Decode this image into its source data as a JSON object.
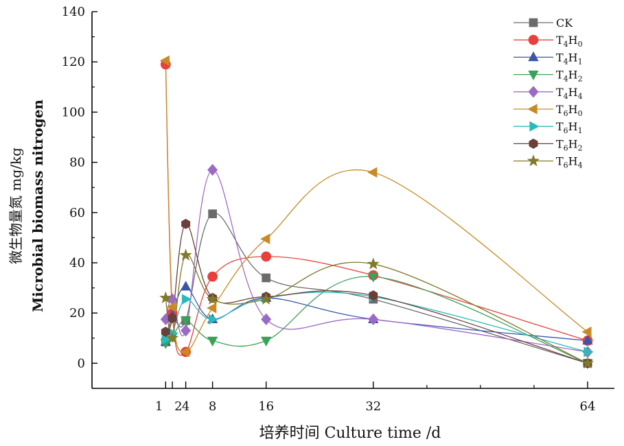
{
  "chart_data": {
    "type": "line",
    "title": "",
    "xlabel": "培养时间 Culture time /d",
    "ylabel_cn": "微生物量氮 mg/kg",
    "ylabel_en": "Microbial biomass nitrogen",
    "x": [
      1,
      2,
      4,
      8,
      16,
      32,
      64
    ],
    "x_ticks": [
      "1",
      "2",
      "4",
      "8",
      "16",
      "32",
      "64"
    ],
    "xlim": [
      -10,
      68
    ],
    "y_ticks": [
      "0",
      "20",
      "40",
      "60",
      "80",
      "100",
      "120",
      "140"
    ],
    "ylim": [
      -10,
      140
    ],
    "grid": false,
    "legend_position": "top-right",
    "series": [
      {
        "name": "CK",
        "name_parts": [
          "CK",
          "",
          "",
          ""
        ],
        "color": "#6b6b6b",
        "marker": "square",
        "values": [
          8.5,
          18,
          17,
          59.5,
          34,
          25.5,
          0
        ]
      },
      {
        "name": "T4H0",
        "name_parts": [
          "T",
          "4",
          "H",
          "0"
        ],
        "color": "#e8413c",
        "marker": "circle",
        "values": [
          119,
          20,
          4.5,
          34.5,
          42.5,
          35,
          9
        ]
      },
      {
        "name": "T4H1",
        "name_parts": [
          "T",
          "4",
          "H",
          "1"
        ],
        "color": "#3a56a8",
        "marker": "triangle-up",
        "values": [
          8.5,
          19,
          30.5,
          17.5,
          26,
          17.5,
          9
        ]
      },
      {
        "name": "T4H2",
        "name_parts": [
          "T",
          "4",
          "H",
          "2"
        ],
        "color": "#3aa159",
        "marker": "triangle-down",
        "values": [
          8,
          10.5,
          17,
          9,
          9,
          34.5,
          0
        ]
      },
      {
        "name": "T4H4",
        "name_parts": [
          "T",
          "4",
          "H",
          "4"
        ],
        "color": "#9b6bc4",
        "marker": "diamond",
        "values": [
          17.5,
          25.5,
          13,
          77,
          17.5,
          17.5,
          4.5
        ]
      },
      {
        "name": "T6H0",
        "name_parts": [
          "T",
          "6",
          "H",
          "0"
        ],
        "color": "#c98a25",
        "marker": "triangle-left",
        "values": [
          120.5,
          22.5,
          4.5,
          22,
          49.5,
          76,
          12.5
        ]
      },
      {
        "name": "T6H1",
        "name_parts": [
          "T",
          "6",
          "H",
          "1"
        ],
        "color": "#2bbab9",
        "marker": "triangle-right",
        "values": [
          9.5,
          12,
          25.5,
          17.5,
          26,
          26.5,
          4.5
        ]
      },
      {
        "name": "T6H2",
        "name_parts": [
          "T",
          "6",
          "H",
          "2"
        ],
        "color": "#6b3f3a",
        "marker": "hexagon",
        "values": [
          12.5,
          18,
          55.5,
          26,
          26.5,
          27,
          0
        ]
      },
      {
        "name": "T6H4",
        "name_parts": [
          "T",
          "6",
          "H",
          "4"
        ],
        "color": "#807a2b",
        "marker": "star",
        "values": [
          26,
          10,
          43,
          25.5,
          25.5,
          39.5,
          0
        ]
      }
    ]
  }
}
